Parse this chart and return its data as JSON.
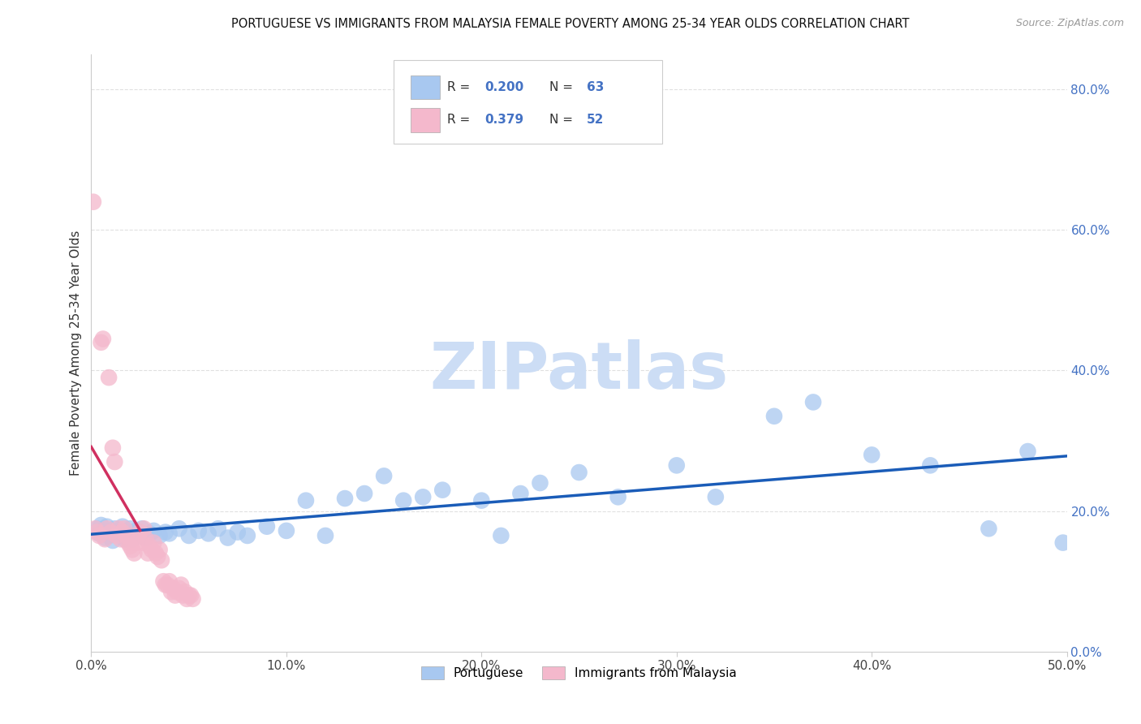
{
  "title": "PORTUGUESE VS IMMIGRANTS FROM MALAYSIA FEMALE POVERTY AMONG 25-34 YEAR OLDS CORRELATION CHART",
  "source": "Source: ZipAtlas.com",
  "ylabel": "Female Poverty Among 25-34 Year Olds",
  "xlim": [
    0.0,
    0.5
  ],
  "ylim": [
    0.0,
    0.85
  ],
  "xticks": [
    0.0,
    0.1,
    0.2,
    0.3,
    0.4,
    0.5
  ],
  "yticks_right": [
    0.0,
    0.2,
    0.4,
    0.6,
    0.8
  ],
  "portuguese_R": 0.2,
  "portuguese_N": 63,
  "malaysia_R": 0.379,
  "malaysia_N": 52,
  "portuguese_color": "#a8c8f0",
  "malaysia_color": "#f4b8cc",
  "portuguese_line_color": "#1a5cb8",
  "malaysia_line_color": "#d03060",
  "watermark_text": "ZIPatlas",
  "watermark_color": "#ccddf5",
  "background_color": "#ffffff",
  "grid_color": "#e0e0e0",
  "portuguese_scatter_x": [
    0.003,
    0.004,
    0.005,
    0.006,
    0.007,
    0.008,
    0.009,
    0.01,
    0.011,
    0.012,
    0.013,
    0.014,
    0.015,
    0.016,
    0.017,
    0.018,
    0.019,
    0.02,
    0.021,
    0.022,
    0.023,
    0.024,
    0.025,
    0.026,
    0.028,
    0.03,
    0.032,
    0.035,
    0.038,
    0.04,
    0.045,
    0.05,
    0.055,
    0.06,
    0.065,
    0.07,
    0.075,
    0.08,
    0.09,
    0.1,
    0.11,
    0.12,
    0.13,
    0.14,
    0.15,
    0.16,
    0.17,
    0.18,
    0.2,
    0.21,
    0.22,
    0.23,
    0.25,
    0.27,
    0.3,
    0.32,
    0.35,
    0.37,
    0.4,
    0.43,
    0.46,
    0.48,
    0.498
  ],
  "portuguese_scatter_y": [
    0.175,
    0.168,
    0.18,
    0.172,
    0.162,
    0.178,
    0.165,
    0.17,
    0.158,
    0.175,
    0.168,
    0.172,
    0.165,
    0.178,
    0.16,
    0.17,
    0.165,
    0.175,
    0.16,
    0.168,
    0.172,
    0.165,
    0.17,
    0.175,
    0.162,
    0.168,
    0.172,
    0.165,
    0.17,
    0.168,
    0.175,
    0.165,
    0.172,
    0.168,
    0.175,
    0.162,
    0.17,
    0.165,
    0.178,
    0.172,
    0.215,
    0.165,
    0.218,
    0.225,
    0.25,
    0.215,
    0.22,
    0.23,
    0.215,
    0.165,
    0.225,
    0.24,
    0.255,
    0.22,
    0.265,
    0.22,
    0.335,
    0.355,
    0.28,
    0.265,
    0.175,
    0.285,
    0.155
  ],
  "malaysia_scatter_x": [
    0.001,
    0.002,
    0.003,
    0.004,
    0.005,
    0.006,
    0.007,
    0.008,
    0.009,
    0.01,
    0.011,
    0.012,
    0.013,
    0.014,
    0.015,
    0.016,
    0.017,
    0.018,
    0.019,
    0.02,
    0.021,
    0.022,
    0.023,
    0.024,
    0.025,
    0.026,
    0.027,
    0.028,
    0.029,
    0.03,
    0.031,
    0.032,
    0.033,
    0.034,
    0.035,
    0.036,
    0.037,
    0.038,
    0.039,
    0.04,
    0.041,
    0.042,
    0.043,
    0.044,
    0.045,
    0.046,
    0.047,
    0.048,
    0.049,
    0.05,
    0.051,
    0.052
  ],
  "malaysia_scatter_y": [
    0.64,
    0.175,
    0.17,
    0.165,
    0.44,
    0.445,
    0.16,
    0.175,
    0.39,
    0.17,
    0.29,
    0.27,
    0.165,
    0.175,
    0.16,
    0.17,
    0.175,
    0.165,
    0.155,
    0.15,
    0.145,
    0.14,
    0.155,
    0.165,
    0.17,
    0.155,
    0.175,
    0.16,
    0.14,
    0.15,
    0.145,
    0.155,
    0.14,
    0.135,
    0.145,
    0.13,
    0.1,
    0.095,
    0.095,
    0.1,
    0.085,
    0.09,
    0.08,
    0.085,
    0.09,
    0.095,
    0.08,
    0.085,
    0.075,
    0.08,
    0.08,
    0.075
  ]
}
